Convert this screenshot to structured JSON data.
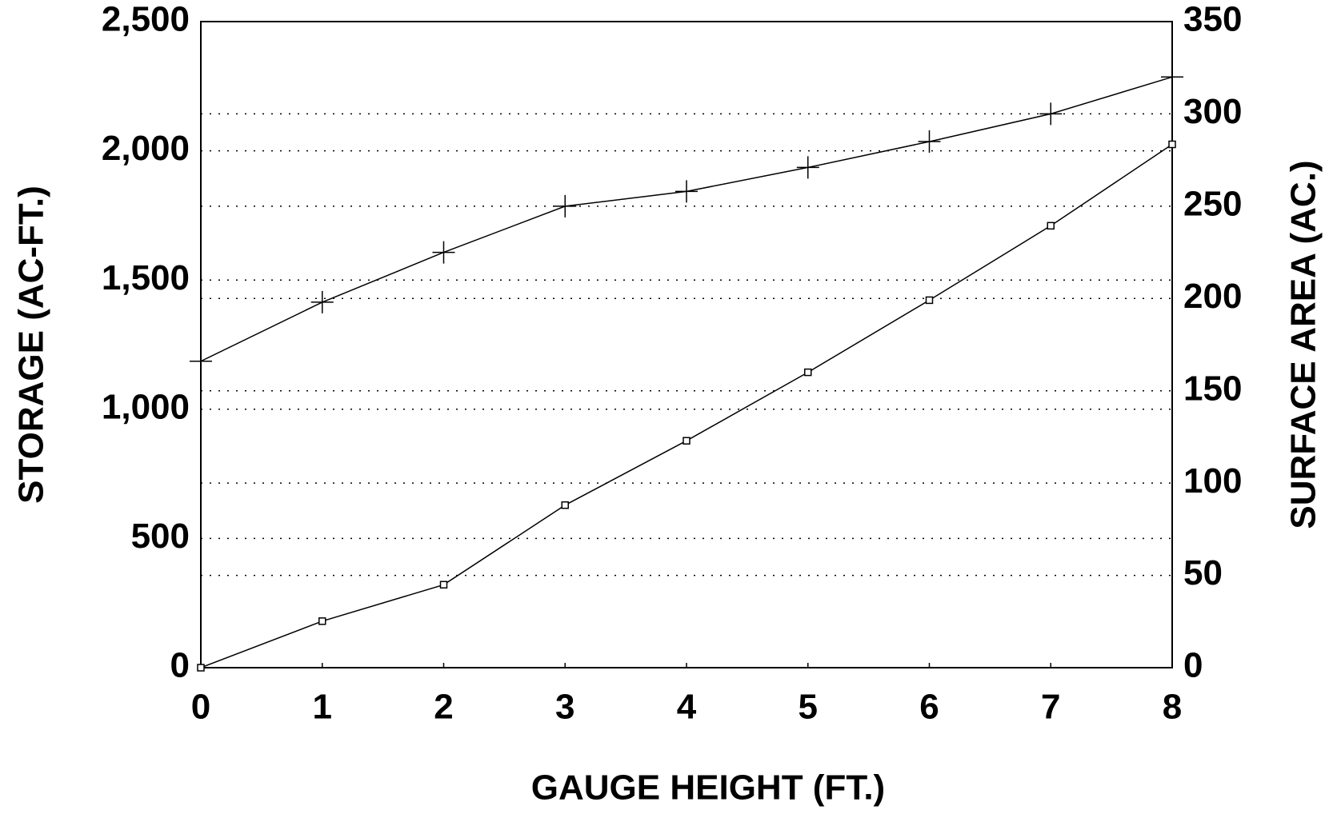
{
  "chart_data": {
    "type": "line",
    "x_label": "GAUGE HEIGHT (FT.)",
    "y_label": "STORAGE (AC-FT.)",
    "y2_label": "SURFACE AREA (AC.)",
    "x": [
      0,
      1,
      2,
      3,
      4,
      5,
      6,
      7,
      8
    ],
    "xlim": [
      0,
      8
    ],
    "xticks": [
      0,
      1,
      2,
      3,
      4,
      5,
      6,
      7,
      8
    ],
    "ylim": [
      0,
      2500
    ],
    "yticks": [
      0,
      500,
      {
        "value": 1000,
        "label": "1,000"
      },
      {
        "value": 1500,
        "label": "1,500"
      },
      {
        "value": 2000,
        "label": "2,000"
      },
      {
        "value": 2500,
        "label": "2,500"
      }
    ],
    "y2lim": [
      0,
      350
    ],
    "y2ticks": [
      0,
      50,
      100,
      150,
      200,
      250,
      300,
      350
    ],
    "grid": true,
    "series": [
      {
        "color": "#000000",
        "marker": "square",
        "values": [
          0,
          180,
          321,
          629,
          878,
          1143,
          1422,
          1710,
          2025
        ]
      },
      {
        "color": "#000000",
        "marker": "plus",
        "axis": "y2",
        "values": [
          166,
          198,
          225,
          250,
          258,
          271,
          285,
          300,
          320
        ]
      }
    ]
  }
}
